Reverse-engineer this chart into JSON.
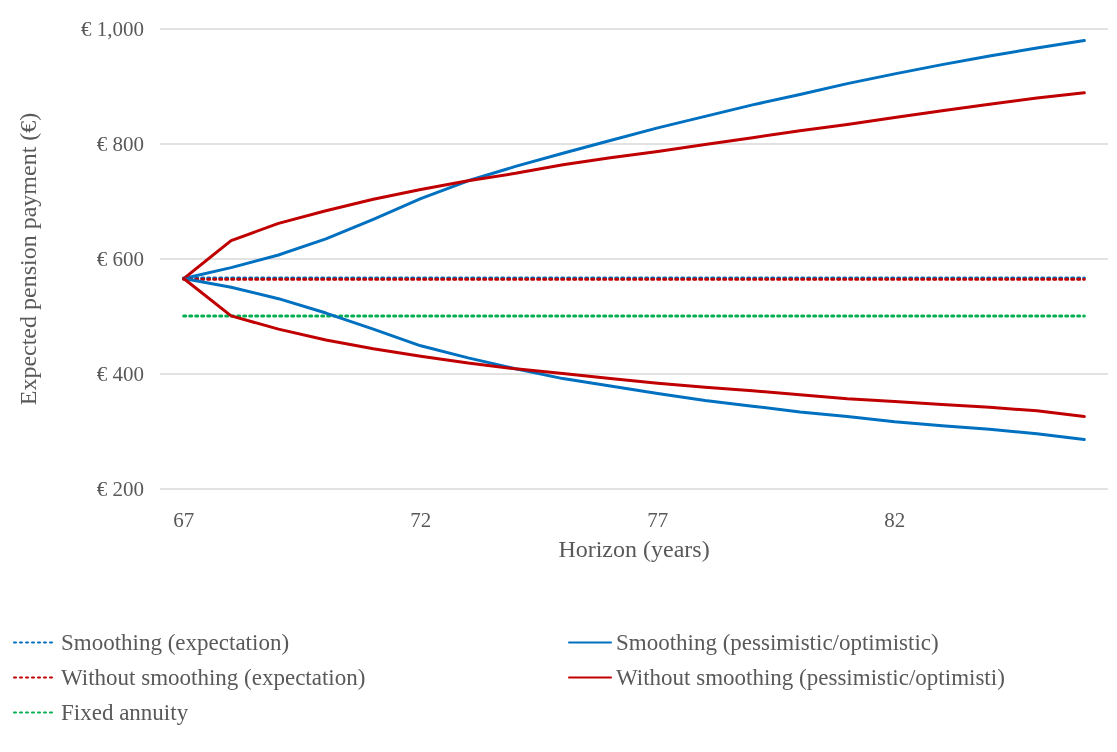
{
  "chart_data": {
    "type": "line",
    "xlabel": "Horizon (years)",
    "ylabel": "Expected pension payment (€)",
    "categories": [
      "67",
      null,
      null,
      null,
      null,
      "72",
      null,
      null,
      null,
      null,
      "77",
      null,
      null,
      null,
      null,
      "82",
      null,
      null,
      null,
      null
    ],
    "ylim": [
      200,
      1000
    ],
    "yticks": [
      {
        "value": 200,
        "label": "€ 200"
      },
      {
        "value": 400,
        "label": "€ 400"
      },
      {
        "value": 600,
        "label": "€ 600"
      },
      {
        "value": 800,
        "label": "€ 800"
      },
      {
        "value": 1000,
        "label": "€ 1,000"
      }
    ],
    "grid": "y",
    "legend": "bottom",
    "marker": "none",
    "series": [
      {
        "name": "Smoothing (expectation)",
        "color": "#0070c0",
        "line_style": "dotted",
        "values": [
          567,
          567,
          567,
          567,
          567,
          567,
          567,
          567,
          567,
          567,
          567,
          567,
          567,
          567,
          567,
          567,
          567,
          567,
          567,
          567
        ]
      },
      {
        "name": "Smoothing (pessimistic/optimistic)",
        "color": "#0070c0",
        "line_style": "solid",
        "values": [
          566,
          585,
          607,
          635,
          669,
          705,
          736,
          761,
          784,
          806,
          828,
          848,
          868,
          886,
          905,
          922,
          938,
          953,
          967,
          980
        ]
      },
      {
        "name": "Without smoothing (expectation)",
        "color": "#c00000",
        "line_style": "dotted",
        "values": [
          565,
          565,
          565,
          565,
          565,
          565,
          565,
          565,
          565,
          565,
          565,
          565,
          565,
          565,
          565,
          565,
          565,
          565,
          565,
          565
        ]
      },
      {
        "name": "Without smoothing (pessimistic/optimisti)",
        "color": "#c00000",
        "line_style": "solid",
        "values": [
          566,
          632,
          662,
          684,
          704,
          721,
          736,
          749,
          764,
          776,
          787,
          799,
          811,
          823,
          834,
          846,
          858,
          869,
          880,
          889
        ]
      },
      {
        "name": "Fixed annuity",
        "color": "#00b050",
        "line_style": "dotted",
        "values": [
          501,
          501,
          501,
          501,
          501,
          501,
          501,
          501,
          501,
          501,
          501,
          501,
          501,
          501,
          501,
          501,
          501,
          501,
          501,
          501
        ]
      },
      {
        "color": "#0070c0",
        "line_style": "solid",
        "values": [
          566,
          551,
          531,
          506,
          478,
          449,
          428,
          409,
          392,
          379,
          366,
          354,
          344,
          334,
          326,
          317,
          310,
          304,
          296,
          286
        ]
      },
      {
        "color": "#c00000",
        "line_style": "solid",
        "values": [
          566,
          501,
          478,
          459,
          444,
          431,
          419,
          409,
          401,
          392,
          384,
          377,
          371,
          364,
          357,
          352,
          347,
          342,
          336,
          326
        ]
      }
    ]
  }
}
